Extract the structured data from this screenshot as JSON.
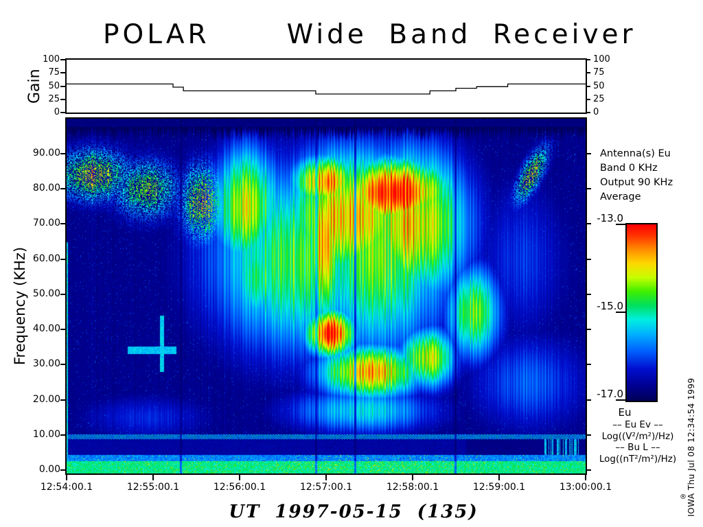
{
  "title": {
    "mission": "POLAR",
    "instrument": "Wide Band Receiver"
  },
  "annotations": {
    "antenna": "Antenna(s) Eu",
    "band": "Band 0 KHz",
    "output": "Output 90 KHz",
    "average": "Average"
  },
  "legend": {
    "eu": "Eu",
    "l1": "–– Eu Ev ––",
    "l2": "Log((V²/m²)/Hz)",
    "l3": "–– Bu L ––",
    "l4": "Log((nT²/m²)/Hz)"
  },
  "credit": "IOWA Thu Jul 08 12:34:54 1999",
  "reg_mark": "®",
  "chart_data": {
    "type": "heatmap",
    "title": "POLAR Wide Band Receiver",
    "x_axis": {
      "label": "UT 1997-05-15  (135)",
      "ticks": [
        "12:54:00.1",
        "12:55:00.1",
        "12:56:00.1",
        "12:57:00.1",
        "12:58:00.1",
        "12:59:00.1",
        "13:00:00.1"
      ],
      "range_seconds": [
        0,
        360
      ]
    },
    "y_axis": {
      "label": "Frequency (KHz)",
      "ticks": [
        "0.00",
        "10.00",
        "20.00",
        "30.00",
        "40.00",
        "50.00",
        "60.00",
        "70.00",
        "80.00",
        "90.00"
      ],
      "range_khz": [
        0,
        100
      ]
    },
    "colorbar": {
      "ticks": [
        "-13.0",
        "-15.0",
        "-17.0"
      ],
      "range_log": [
        -17.0,
        -13.0
      ]
    },
    "gain": {
      "label": "Gain",
      "ticks": [
        "0",
        "25",
        "50",
        "75",
        "100"
      ],
      "range": [
        0,
        100
      ],
      "profile_steps": [
        [
          0,
          54
        ],
        [
          0.205,
          48
        ],
        [
          0.225,
          41
        ],
        [
          0.48,
          35
        ],
        [
          0.7,
          41
        ],
        [
          0.75,
          46
        ],
        [
          0.79,
          49
        ],
        [
          0.85,
          54
        ]
      ]
    },
    "colormap_stops": [
      [
        0.0,
        "#00005a"
      ],
      [
        0.08,
        "#000090"
      ],
      [
        0.18,
        "#0010d0"
      ],
      [
        0.28,
        "#0060ff"
      ],
      [
        0.38,
        "#00b4ff"
      ],
      [
        0.46,
        "#00f0e0"
      ],
      [
        0.54,
        "#00e060"
      ],
      [
        0.62,
        "#40f000"
      ],
      [
        0.7,
        "#c8ff00"
      ],
      [
        0.78,
        "#ffd800"
      ],
      [
        0.86,
        "#ff8c00"
      ],
      [
        0.93,
        "#ff3c00"
      ],
      [
        1.0,
        "#ff0000"
      ]
    ],
    "features": {
      "seed": 7,
      "blobs": [
        {
          "t": 18,
          "f": 84,
          "st": 30,
          "sf": 8,
          "a": 0.5,
          "sp": 1
        },
        {
          "t": 55,
          "f": 80,
          "st": 25,
          "sf": 9,
          "a": 0.45,
          "sp": 1
        },
        {
          "t": 95,
          "f": 76,
          "st": 18,
          "sf": 12,
          "a": 0.5,
          "sp": 1
        },
        {
          "t": 125,
          "f": 75,
          "st": 25,
          "sf": 18,
          "a": 0.7
        },
        {
          "t": 135,
          "f": 55,
          "st": 22,
          "sf": 15,
          "a": 0.55
        },
        {
          "t": 160,
          "f": 60,
          "st": 65,
          "sf": 28,
          "a": 0.58
        },
        {
          "t": 215,
          "f": 62,
          "st": 55,
          "sf": 30,
          "a": 0.62
        },
        {
          "t": 195,
          "f": 72,
          "st": 48,
          "sf": 20,
          "a": 0.8
        },
        {
          "t": 240,
          "f": 70,
          "st": 40,
          "sf": 22,
          "a": 0.78
        },
        {
          "t": 228,
          "f": 79,
          "st": 40,
          "sf": 10,
          "a": 1.0
        },
        {
          "t": 180,
          "f": 82,
          "st": 25,
          "sf": 8,
          "a": 0.85
        },
        {
          "t": 178,
          "f": 65,
          "st": 12,
          "sf": 25,
          "a": 0.85
        },
        {
          "t": 183,
          "f": 39,
          "st": 18,
          "sf": 7,
          "a": 1.0
        },
        {
          "t": 210,
          "f": 28,
          "st": 38,
          "sf": 8,
          "a": 0.8
        },
        {
          "t": 250,
          "f": 32,
          "st": 20,
          "sf": 9,
          "a": 0.72
        },
        {
          "t": 282,
          "f": 45,
          "st": 20,
          "sf": 14,
          "a": 0.62
        },
        {
          "t": 205,
          "f": 17,
          "st": 55,
          "sf": 7,
          "a": 0.42
        },
        {
          "t": 320,
          "f": 25,
          "st": 45,
          "sf": 15,
          "a": 0.27
        },
        {
          "t": 55,
          "f": 15,
          "st": 50,
          "sf": 7,
          "a": 0.2
        },
        {
          "t": 315,
          "f": 60,
          "st": 35,
          "sf": 25,
          "a": 0.22
        },
        {
          "t": 322,
          "f": 84,
          "st": 13,
          "sf": 6,
          "a": 0.5,
          "k": 0.5,
          "sp": 1
        }
      ],
      "lines": [
        {
          "t0": 42,
          "t1": 76,
          "f0": 33,
          "f1": 35.2,
          "a": 0.4
        },
        {
          "t0": 64.5,
          "t1": 67.5,
          "f0": 28,
          "f1": 44,
          "a": 0.42
        }
      ],
      "dark_columns": [
        166,
        363,
        420,
        566
      ],
      "bands": {
        "dotted_row_khz": [
          8.8,
          10.3
        ],
        "dark_band_khz": [
          4.3,
          8.8
        ],
        "speckle_row_khz": [
          2.6,
          4.3
        ],
        "bottom_band_khz": [
          0,
          2.6
        ]
      }
    }
  }
}
